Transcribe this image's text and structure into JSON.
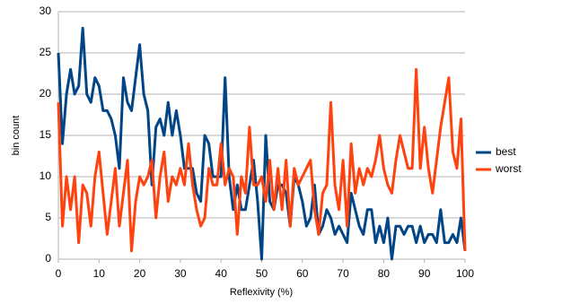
{
  "chart_data": {
    "type": "line",
    "x_label": "Reflexivity (%)",
    "y_label": "bin count",
    "x": [
      0,
      1,
      2,
      3,
      4,
      5,
      6,
      7,
      8,
      9,
      10,
      11,
      12,
      13,
      14,
      15,
      16,
      17,
      18,
      19,
      20,
      21,
      22,
      23,
      24,
      25,
      26,
      27,
      28,
      29,
      30,
      31,
      32,
      33,
      34,
      35,
      36,
      37,
      38,
      39,
      40,
      41,
      42,
      43,
      44,
      45,
      46,
      47,
      48,
      49,
      50,
      51,
      52,
      53,
      54,
      55,
      56,
      57,
      58,
      59,
      60,
      61,
      62,
      63,
      64,
      65,
      66,
      67,
      68,
      69,
      70,
      71,
      72,
      73,
      74,
      75,
      76,
      77,
      78,
      79,
      80,
      81,
      82,
      83,
      84,
      85,
      86,
      87,
      88,
      89,
      90,
      91,
      92,
      93,
      94,
      95,
      96,
      97,
      98,
      99,
      100
    ],
    "series": [
      {
        "name": "best",
        "color": "#004586",
        "values": [
          25,
          14,
          20,
          23,
          20,
          21,
          28,
          20,
          19,
          22,
          21,
          18,
          18,
          17,
          15,
          11,
          22,
          19,
          18,
          22,
          26,
          20,
          18,
          9,
          16,
          17,
          15,
          19,
          15,
          18,
          15,
          11,
          11,
          11,
          8,
          7,
          15,
          14,
          10,
          10,
          10,
          22,
          10,
          6,
          9,
          6,
          6,
          9,
          12,
          7,
          0,
          15,
          7,
          6,
          9,
          9,
          8,
          4,
          10,
          9,
          7,
          4,
          5,
          9,
          3,
          4,
          6,
          5,
          3,
          4,
          3,
          2,
          8,
          6,
          4,
          3,
          6,
          6,
          2,
          4,
          2,
          5,
          0,
          4,
          4,
          3,
          4,
          4,
          2,
          4,
          2,
          3,
          3,
          2,
          6,
          2,
          2,
          3,
          2,
          5,
          1
        ]
      },
      {
        "name": "worst",
        "color": "#ff420e",
        "values": [
          19,
          4,
          10,
          6,
          10,
          2,
          9,
          8,
          4,
          10,
          13,
          8,
          3,
          7,
          11,
          4,
          8,
          12,
          1,
          7,
          10,
          9,
          10,
          12,
          5,
          10,
          13,
          7,
          10,
          9,
          11,
          9,
          14,
          9,
          6,
          4,
          5,
          11,
          9,
          9,
          14,
          9,
          11,
          10,
          3,
          10,
          8,
          16,
          9,
          9,
          10,
          7,
          12,
          6,
          11,
          6,
          12,
          4,
          11,
          9,
          10,
          11,
          12,
          6,
          3,
          8,
          9,
          19,
          9,
          6,
          12,
          4,
          14,
          8,
          11,
          9,
          11,
          10,
          12,
          15,
          11,
          9,
          8,
          12,
          15,
          13,
          11,
          11,
          23,
          11,
          16,
          11,
          8,
          12,
          16,
          19,
          22,
          13,
          11,
          17,
          1
        ]
      }
    ],
    "xlim": [
      0,
      100
    ],
    "xticks": [
      0,
      10,
      20,
      30,
      40,
      50,
      60,
      70,
      80,
      90,
      100
    ],
    "ylim": [
      0,
      30
    ],
    "yticks": [
      0,
      5,
      10,
      15,
      20,
      25,
      30
    ],
    "grid": true,
    "legend": "right"
  }
}
